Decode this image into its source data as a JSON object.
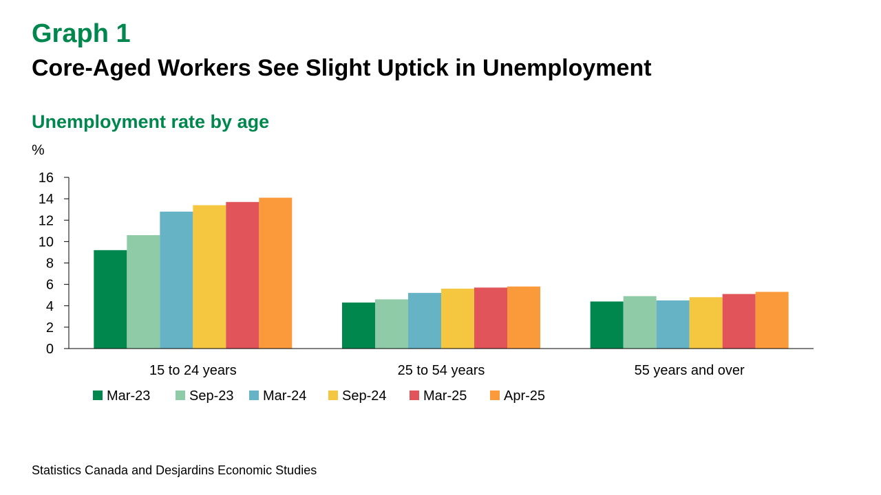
{
  "header": {
    "graph_label": "Graph 1",
    "title": "Core-Aged Workers See Slight Uptick in Unemployment"
  },
  "chart_data": {
    "type": "bar",
    "title": "Unemployment rate by age",
    "ylabel": "%",
    "xlabel": "",
    "ylim": [
      0,
      16
    ],
    "yticks": [
      0,
      2,
      4,
      6,
      8,
      10,
      12,
      14,
      16
    ],
    "grid": false,
    "legend_position": "bottom-left",
    "categories": [
      "15 to 24 years",
      "25 to 54 years",
      "55 years and over"
    ],
    "series": [
      {
        "name": "Mar-23",
        "color": "#00874E",
        "values": [
          9.2,
          4.3,
          4.4
        ]
      },
      {
        "name": "Sep-23",
        "color": "#8FCBA7",
        "values": [
          10.6,
          4.6,
          4.9
        ]
      },
      {
        "name": "Mar-24",
        "color": "#67B3C6",
        "values": [
          12.8,
          5.2,
          4.5
        ]
      },
      {
        "name": "Sep-24",
        "color": "#F5C640",
        "values": [
          13.4,
          5.6,
          4.8
        ]
      },
      {
        "name": "Mar-25",
        "color": "#E0545A",
        "values": [
          13.7,
          5.7,
          5.1
        ]
      },
      {
        "name": "Apr-25",
        "color": "#FA9A3A",
        "values": [
          14.1,
          5.8,
          5.3
        ]
      }
    ]
  },
  "footer": {
    "source": "Statistics Canada and Desjardins Economic Studies"
  }
}
